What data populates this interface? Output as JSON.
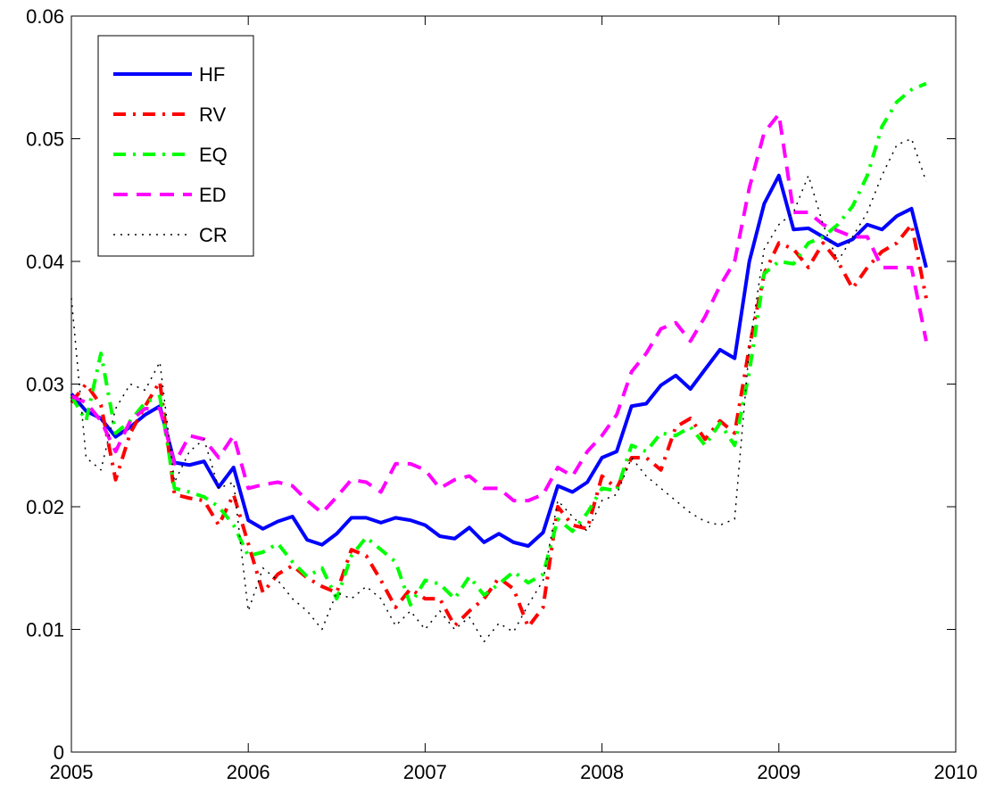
{
  "chart_data": {
    "type": "line",
    "x": [
      2005,
      2005.083,
      2005.167,
      2005.25,
      2005.333,
      2005.417,
      2005.5,
      2005.583,
      2005.667,
      2005.75,
      2005.833,
      2005.917,
      2006,
      2006.083,
      2006.167,
      2006.25,
      2006.333,
      2006.417,
      2006.5,
      2006.583,
      2006.667,
      2006.75,
      2006.833,
      2006.917,
      2007,
      2007.083,
      2007.167,
      2007.25,
      2007.333,
      2007.417,
      2007.5,
      2007.583,
      2007.667,
      2007.75,
      2007.833,
      2007.917,
      2008,
      2008.083,
      2008.167,
      2008.25,
      2008.333,
      2008.417,
      2008.5,
      2008.583,
      2008.667,
      2008.75,
      2008.833,
      2008.917,
      2009,
      2009.083,
      2009.167,
      2009.25,
      2009.333,
      2009.417,
      2009.5,
      2009.583,
      2009.667,
      2009.75,
      2009.833
    ],
    "series": [
      {
        "name": "HF",
        "color": "#0000ff",
        "linestyle": "solid",
        "linewidth": 4,
        "values": [
          0.0292,
          0.0278,
          0.0272,
          0.0257,
          0.0265,
          0.0275,
          0.0282,
          0.0236,
          0.0234,
          0.0237,
          0.0216,
          0.0232,
          0.0189,
          0.0182,
          0.0188,
          0.0192,
          0.0173,
          0.0169,
          0.0178,
          0.0191,
          0.0191,
          0.0187,
          0.0191,
          0.0189,
          0.0185,
          0.0176,
          0.0174,
          0.0183,
          0.0171,
          0.0178,
          0.0171,
          0.0168,
          0.0179,
          0.0217,
          0.0212,
          0.022,
          0.024,
          0.0245,
          0.0282,
          0.0284,
          0.0299,
          0.0307,
          0.0296,
          0.0312,
          0.0328,
          0.0321,
          0.04,
          0.0447,
          0.047,
          0.0426,
          0.0427,
          0.042,
          0.0413,
          0.0418,
          0.043,
          0.0426,
          0.0437,
          0.0443,
          0.0395
        ]
      },
      {
        "name": "RV",
        "color": "#ff0000",
        "linestyle": "dashdot",
        "linewidth": 4,
        "values": [
          0.0285,
          0.03,
          0.0283,
          0.0222,
          0.026,
          0.0282,
          0.0302,
          0.021,
          0.0207,
          0.0205,
          0.0185,
          0.021,
          0.017,
          0.013,
          0.0145,
          0.0152,
          0.0142,
          0.0135,
          0.013,
          0.0165,
          0.016,
          0.014,
          0.0118,
          0.0133,
          0.0125,
          0.0125,
          0.0103,
          0.0115,
          0.0125,
          0.0142,
          0.0133,
          0.0102,
          0.0118,
          0.02,
          0.0185,
          0.0182,
          0.0225,
          0.0215,
          0.024,
          0.024,
          0.023,
          0.0265,
          0.0272,
          0.0255,
          0.027,
          0.026,
          0.033,
          0.039,
          0.0415,
          0.041,
          0.0395,
          0.0415,
          0.04,
          0.0378,
          0.0395,
          0.0408,
          0.0415,
          0.043,
          0.037
        ]
      },
      {
        "name": "EQ",
        "color": "#00ff00",
        "linestyle": "dashdot",
        "linewidth": 4,
        "values": [
          0.029,
          0.027,
          0.0325,
          0.026,
          0.027,
          0.0285,
          0.029,
          0.0215,
          0.0212,
          0.0208,
          0.02,
          0.0185,
          0.016,
          0.0163,
          0.017,
          0.0155,
          0.0143,
          0.015,
          0.0125,
          0.016,
          0.0175,
          0.0165,
          0.0155,
          0.012,
          0.014,
          0.0137,
          0.0125,
          0.0143,
          0.0128,
          0.0137,
          0.0147,
          0.0138,
          0.0145,
          0.019,
          0.018,
          0.0195,
          0.0215,
          0.0213,
          0.025,
          0.0245,
          0.026,
          0.0258,
          0.0265,
          0.025,
          0.0268,
          0.025,
          0.031,
          0.039,
          0.04,
          0.0398,
          0.0415,
          0.042,
          0.043,
          0.0445,
          0.047,
          0.051,
          0.053,
          0.054,
          0.0545
        ]
      },
      {
        "name": "ED",
        "color": "#ff00ff",
        "linestyle": "dashed",
        "linewidth": 4,
        "values": [
          0.029,
          0.0285,
          0.027,
          0.0245,
          0.027,
          0.028,
          0.028,
          0.0235,
          0.0258,
          0.0255,
          0.024,
          0.0258,
          0.0215,
          0.0218,
          0.022,
          0.0217,
          0.0205,
          0.0195,
          0.0208,
          0.0222,
          0.022,
          0.0212,
          0.0235,
          0.0235,
          0.023,
          0.0215,
          0.0222,
          0.0225,
          0.0215,
          0.0215,
          0.0205,
          0.0205,
          0.021,
          0.0232,
          0.0225,
          0.0245,
          0.0258,
          0.0275,
          0.031,
          0.0325,
          0.0345,
          0.035,
          0.0335,
          0.0355,
          0.038,
          0.04,
          0.046,
          0.0505,
          0.052,
          0.044,
          0.044,
          0.043,
          0.0425,
          0.042,
          0.042,
          0.0395,
          0.0395,
          0.0395,
          0.0335
        ]
      },
      {
        "name": "CR",
        "color": "#000000",
        "linestyle": "dotted",
        "linewidth": 1.5,
        "values": [
          0.037,
          0.024,
          0.023,
          0.028,
          0.03,
          0.0295,
          0.0318,
          0.022,
          0.0245,
          0.0255,
          0.0215,
          0.022,
          0.0115,
          0.015,
          0.014,
          0.0125,
          0.0115,
          0.01,
          0.013,
          0.0125,
          0.0135,
          0.0125,
          0.0103,
          0.0115,
          0.01,
          0.0115,
          0.01,
          0.011,
          0.009,
          0.0105,
          0.0098,
          0.012,
          0.014,
          0.0205,
          0.0192,
          0.018,
          0.0205,
          0.021,
          0.024,
          0.0225,
          0.0215,
          0.0205,
          0.0195,
          0.0188,
          0.0185,
          0.019,
          0.033,
          0.041,
          0.043,
          0.044,
          0.047,
          0.043,
          0.04,
          0.042,
          0.044,
          0.047,
          0.0495,
          0.05,
          0.0465
        ]
      }
    ],
    "xlim": [
      2005,
      2010
    ],
    "xticks": [
      2005,
      2006,
      2007,
      2008,
      2009,
      2010
    ],
    "ylim": [
      0,
      0.06
    ],
    "yticks": [
      0,
      0.01,
      0.02,
      0.03,
      0.04,
      0.05,
      0.06
    ],
    "grid": false,
    "legend": "upper left"
  }
}
